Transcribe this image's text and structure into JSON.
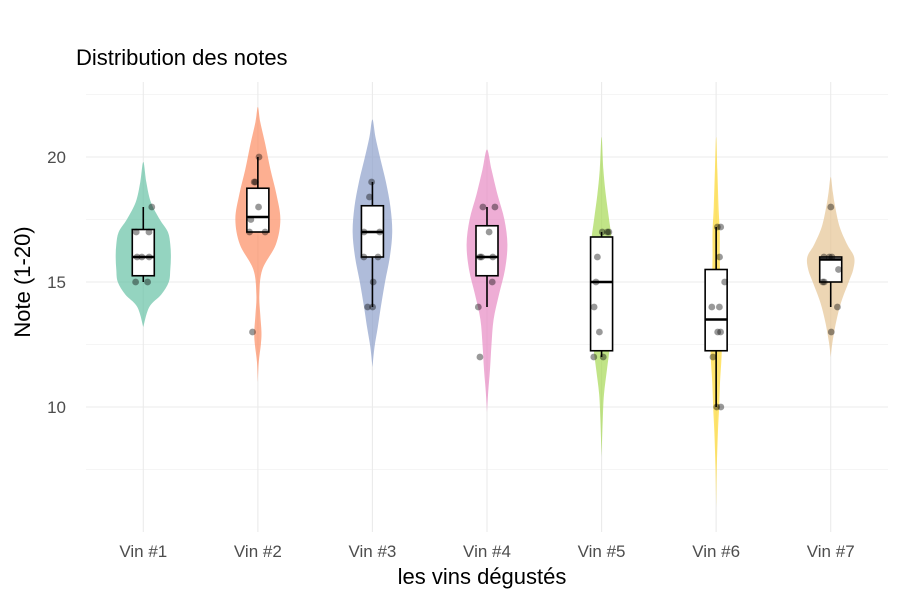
{
  "chart_data": {
    "type": "violin",
    "title": "Distribution des notes",
    "xlabel": "les vins dégustés",
    "ylabel": "Note (1-20)",
    "ylim": [
      5,
      23
    ],
    "yticks": [
      10,
      15,
      20
    ],
    "grid": true,
    "legend": "none",
    "categories": [
      "Vin #1",
      "Vin #2",
      "Vin #3",
      "Vin #4",
      "Vin #5",
      "Vin #6",
      "Vin #7"
    ],
    "colors": [
      "#66c2a5",
      "#fc8d62",
      "#8da0cb",
      "#e78ac3",
      "#a6d854",
      "#ffd92f",
      "#e5c494"
    ],
    "series": [
      {
        "points": [
          15,
          15,
          16,
          16,
          16,
          17,
          17,
          18
        ],
        "box": {
          "min": 15,
          "q1": 15.25,
          "median": 16,
          "q3": 17.1,
          "max": 18
        }
      },
      {
        "points": [
          20,
          19,
          19,
          18,
          17.5,
          17,
          17,
          13
        ],
        "box": {
          "min": 17,
          "q1": 17,
          "median": 17.6,
          "q3": 18.75,
          "max": 20
        }
      },
      {
        "points": [
          19,
          18.4,
          17,
          17,
          16,
          16,
          15,
          14,
          14
        ],
        "box": {
          "min": 14,
          "q1": 16,
          "median": 17,
          "q3": 18.05,
          "max": 19
        }
      },
      {
        "points": [
          18,
          18,
          17,
          16,
          16,
          16,
          15,
          14,
          12
        ],
        "box": {
          "min": 14,
          "q1": 15.25,
          "median": 16,
          "q3": 17.25,
          "max": 18
        }
      },
      {
        "points": [
          17,
          17,
          17,
          16,
          15,
          14,
          13,
          12,
          12
        ],
        "box": {
          "min": 12,
          "q1": 12.25,
          "median": 15,
          "q3": 16.8,
          "max": 17
        }
      },
      {
        "points": [
          17.2,
          17.2,
          16,
          15,
          14,
          14,
          13,
          13,
          12,
          10,
          10
        ],
        "box": {
          "min": 10,
          "q1": 12.25,
          "median": 13.5,
          "q3": 15.5,
          "max": 17.2
        }
      },
      {
        "points": [
          18,
          16,
          16,
          16,
          15.5,
          15,
          15,
          14,
          13
        ],
        "box": {
          "min": 14,
          "q1": 15,
          "median": 15.9,
          "q3": 16,
          "max": 16
        }
      }
    ],
    "violins": [
      {
        "profile": [
          [
            13.2,
            0
          ],
          [
            14,
            0.2
          ],
          [
            14.5,
            0.6
          ],
          [
            15,
            0.85
          ],
          [
            15.5,
            0.9
          ],
          [
            16,
            0.92
          ],
          [
            16.5,
            0.9
          ],
          [
            17,
            0.82
          ],
          [
            17.5,
            0.55
          ],
          [
            18.2,
            0.25
          ],
          [
            19,
            0.1
          ],
          [
            19.8,
            0
          ]
        ]
      },
      {
        "profile": [
          [
            11,
            0
          ],
          [
            11.8,
            0.03
          ],
          [
            12.5,
            0.1
          ],
          [
            13,
            0.12
          ],
          [
            13.7,
            0.08
          ],
          [
            14.5,
            0.05
          ],
          [
            15.5,
            0.15
          ],
          [
            16.5,
            0.6
          ],
          [
            17.5,
            0.75
          ],
          [
            18.5,
            0.62
          ],
          [
            19.5,
            0.42
          ],
          [
            20.5,
            0.25
          ],
          [
            21.4,
            0.08
          ],
          [
            22,
            0
          ]
        ]
      },
      {
        "profile": [
          [
            11.6,
            0
          ],
          [
            12.4,
            0.07
          ],
          [
            13.2,
            0.18
          ],
          [
            14,
            0.28
          ],
          [
            15,
            0.42
          ],
          [
            16,
            0.58
          ],
          [
            17,
            0.66
          ],
          [
            18,
            0.6
          ],
          [
            19,
            0.45
          ],
          [
            20,
            0.25
          ],
          [
            20.8,
            0.1
          ],
          [
            21.5,
            0
          ]
        ]
      },
      {
        "profile": [
          [
            9.8,
            0
          ],
          [
            10.6,
            0.04
          ],
          [
            11.5,
            0.1
          ],
          [
            12.5,
            0.15
          ],
          [
            13.5,
            0.22
          ],
          [
            14.5,
            0.4
          ],
          [
            15.5,
            0.6
          ],
          [
            16.5,
            0.68
          ],
          [
            17.5,
            0.58
          ],
          [
            18.5,
            0.35
          ],
          [
            19.5,
            0.15
          ],
          [
            20.3,
            0
          ]
        ]
      },
      {
        "profile": [
          [
            8,
            0
          ],
          [
            9.5,
            0.04
          ],
          [
            10.5,
            0.08
          ],
          [
            11.5,
            0.18
          ],
          [
            12.5,
            0.28
          ],
          [
            13.5,
            0.3
          ],
          [
            14.5,
            0.28
          ],
          [
            15.5,
            0.3
          ],
          [
            16.5,
            0.35
          ],
          [
            17.5,
            0.25
          ],
          [
            18.5,
            0.14
          ],
          [
            19.5,
            0.06
          ],
          [
            20.8,
            0
          ]
        ]
      },
      {
        "profile": [
          [
            6,
            0
          ],
          [
            7.5,
            0.02
          ],
          [
            9,
            0.06
          ],
          [
            10,
            0.1
          ],
          [
            11,
            0.13
          ],
          [
            12,
            0.18
          ],
          [
            13,
            0.2
          ],
          [
            14,
            0.18
          ],
          [
            15,
            0.14
          ],
          [
            16,
            0.12
          ],
          [
            17,
            0.12
          ],
          [
            18,
            0.08
          ],
          [
            19.5,
            0.04
          ],
          [
            20.8,
            0
          ]
        ]
      },
      {
        "profile": [
          [
            12,
            0
          ],
          [
            12.6,
            0.06
          ],
          [
            13.4,
            0.18
          ],
          [
            14.2,
            0.35
          ],
          [
            15,
            0.6
          ],
          [
            15.5,
            0.75
          ],
          [
            16,
            0.78
          ],
          [
            16.5,
            0.55
          ],
          [
            17.2,
            0.3
          ],
          [
            18,
            0.15
          ],
          [
            18.6,
            0.07
          ],
          [
            19.2,
            0
          ]
        ]
      }
    ]
  }
}
